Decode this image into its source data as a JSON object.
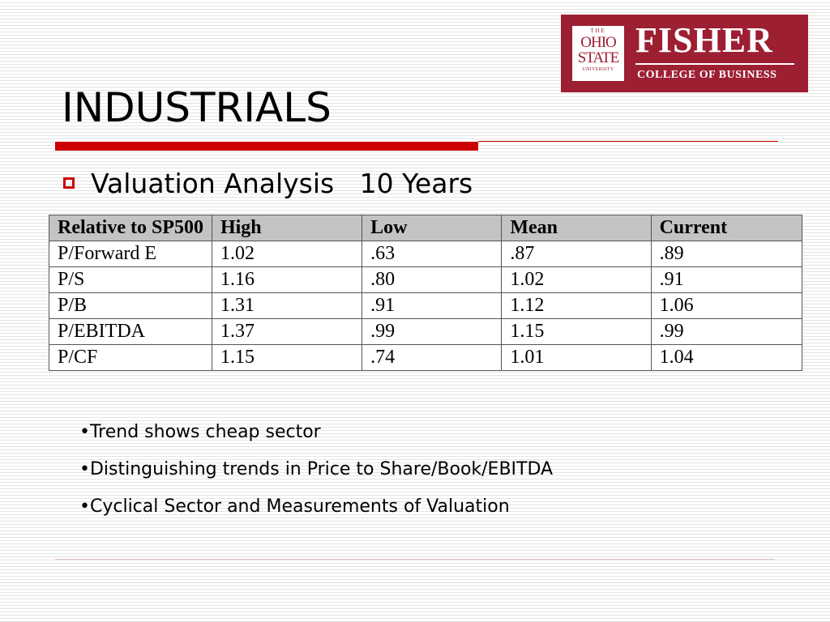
{
  "logo": {
    "seal_the": "THE",
    "seal_ohio": "OHIO",
    "seal_state": "STATE",
    "seal_university": "UNIVERSITY",
    "name": "FISHER",
    "subtitle": "COLLEGE OF BUSINESS",
    "color": "#9d1f32"
  },
  "slide": {
    "title": "INDUSTRIALS",
    "subtitle": "Valuation Analysis   10 Years",
    "accent_color": "#cc0000"
  },
  "table": {
    "headers": [
      "Relative to SP500",
      "High",
      "Low",
      "Mean",
      "Current"
    ],
    "rows": [
      [
        "P/Forward E",
        "1.02",
        ".63",
        ".87",
        ".89"
      ],
      [
        "P/S",
        "1.16",
        ".80",
        "1.02",
        ".91"
      ],
      [
        "P/B",
        "1.31",
        ".91",
        "1.12",
        "1.06"
      ],
      [
        "P/EBITDA",
        "1.37",
        ".99",
        "1.15",
        ".99"
      ],
      [
        "P/CF",
        "1.15",
        ".74",
        "1.01",
        "1.04"
      ]
    ]
  },
  "bullets": [
    "•Trend shows cheap sector",
    "•Distinguishing trends in Price to Share/Book/EBITDA",
    "•Cyclical Sector and Measurements of Valuation"
  ]
}
